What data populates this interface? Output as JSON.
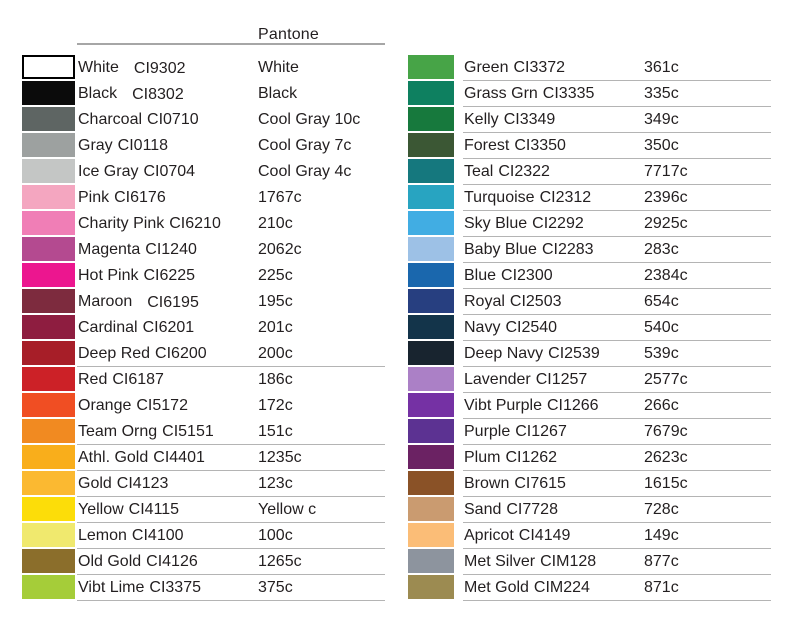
{
  "chart_data": {
    "type": "table",
    "title": "Pantone",
    "left_rows": [
      {
        "name": "White",
        "code": "CI9302",
        "pantone": "White",
        "swatch": "#ffffff",
        "bordered": true,
        "wide_gap": true,
        "underline": false
      },
      {
        "name": "Black",
        "code": "CI8302",
        "pantone": "Black",
        "swatch": "#0b0b0b",
        "bordered": false,
        "wide_gap": true,
        "underline": false
      },
      {
        "name": "Charcoal",
        "code": "CI0710",
        "pantone": "Cool Gray 10c",
        "swatch": "#5e6563",
        "bordered": false,
        "wide_gap": false,
        "underline": false
      },
      {
        "name": "Gray",
        "code": "CI0118",
        "pantone": "Cool Gray 7c",
        "swatch": "#9da1a0",
        "bordered": false,
        "wide_gap": false,
        "underline": false
      },
      {
        "name": "Ice Gray",
        "code": "CI0704",
        "pantone": "Cool Gray 4c",
        "swatch": "#c4c6c5",
        "bordered": false,
        "wide_gap": false,
        "underline": false
      },
      {
        "name": "Pink",
        "code": "CI6176",
        "pantone": "1767c",
        "swatch": "#f4a6c0",
        "bordered": false,
        "wide_gap": false,
        "underline": false
      },
      {
        "name": "Charity Pink",
        "code": "CI6210",
        "pantone": "210c",
        "swatch": "#f07eb6",
        "bordered": false,
        "wide_gap": false,
        "underline": false
      },
      {
        "name": "Magenta",
        "code": "CI1240",
        "pantone": "2062c",
        "swatch": "#b44a90",
        "bordered": false,
        "wide_gap": false,
        "underline": false
      },
      {
        "name": "Hot Pink",
        "code": "CI6225",
        "pantone": "225c",
        "swatch": "#ec168f",
        "bordered": false,
        "wide_gap": false,
        "underline": false
      },
      {
        "name": "Maroon",
        "code": "CI6195",
        "pantone": "195c",
        "swatch": "#7d2b3e",
        "bordered": false,
        "wide_gap": true,
        "underline": false
      },
      {
        "name": "Cardinal",
        "code": "CI6201",
        "pantone": "201c",
        "swatch": "#8e1d40",
        "bordered": false,
        "wide_gap": false,
        "underline": false
      },
      {
        "name": "Deep Red",
        "code": "CI6200",
        "pantone": "200c",
        "swatch": "#a71e28",
        "bordered": false,
        "wide_gap": false,
        "underline": true
      },
      {
        "name": "Red",
        "code": "CI6187",
        "pantone": "186c",
        "swatch": "#cc2127",
        "bordered": false,
        "wide_gap": false,
        "underline": false
      },
      {
        "name": "Orange",
        "code": "CI5172",
        "pantone": "172c",
        "swatch": "#f04e23",
        "bordered": false,
        "wide_gap": false,
        "underline": false
      },
      {
        "name": "Team Orng",
        "code": "CI5151",
        "pantone": "151c",
        "swatch": "#f18a21",
        "bordered": false,
        "wide_gap": false,
        "underline": true
      },
      {
        "name": "Athl. Gold",
        "code": "CI4401",
        "pantone": "1235c",
        "swatch": "#f9ae1b",
        "bordered": false,
        "wide_gap": false,
        "underline": true
      },
      {
        "name": "Gold",
        "code": "CI4123",
        "pantone": "123c",
        "swatch": "#fbb931",
        "bordered": false,
        "wide_gap": false,
        "underline": true
      },
      {
        "name": "Yellow",
        "code": "CI4115",
        "pantone": "Yellow c",
        "swatch": "#fcdd09",
        "bordered": false,
        "wide_gap": false,
        "underline": true
      },
      {
        "name": "Lemon",
        "code": "CI4100",
        "pantone": "100c",
        "swatch": "#f0e96e",
        "bordered": false,
        "wide_gap": false,
        "underline": true
      },
      {
        "name": "Old Gold",
        "code": "CI4126",
        "pantone": "1265c",
        "swatch": "#8b6e2b",
        "bordered": false,
        "wide_gap": false,
        "underline": true
      },
      {
        "name": "Vibt Lime",
        "code": "CI3375",
        "pantone": "375c",
        "swatch": "#a5cd39",
        "bordered": false,
        "wide_gap": false,
        "underline": true
      }
    ],
    "right_rows": [
      {
        "name": "Green",
        "code": "CI3372",
        "pantone": "361c",
        "swatch": "#47a447",
        "bordered": false,
        "wide_gap": false,
        "underline": true
      },
      {
        "name": "Grass Grn",
        "code": "CI3335",
        "pantone": "335c",
        "swatch": "#0e8060",
        "bordered": false,
        "wide_gap": false,
        "underline": true
      },
      {
        "name": "Kelly",
        "code": "CI3349",
        "pantone": "349c",
        "swatch": "#17793d",
        "bordered": false,
        "wide_gap": false,
        "underline": true
      },
      {
        "name": "Forest",
        "code": "CI3350",
        "pantone": "350c",
        "swatch": "#3b5734",
        "bordered": false,
        "wide_gap": false,
        "underline": true
      },
      {
        "name": "Teal",
        "code": "CI2322",
        "pantone": "7717c",
        "swatch": "#15787e",
        "bordered": false,
        "wide_gap": false,
        "underline": true
      },
      {
        "name": "Turquoise",
        "code": "CI2312",
        "pantone": "2396c",
        "swatch": "#28a4c1",
        "bordered": false,
        "wide_gap": false,
        "underline": true
      },
      {
        "name": "Sky Blue",
        "code": "CI2292",
        "pantone": "2925c",
        "swatch": "#41ade3",
        "bordered": false,
        "wide_gap": false,
        "underline": true
      },
      {
        "name": "Baby Blue",
        "code": "CI2283",
        "pantone": "283c",
        "swatch": "#9dc1e6",
        "bordered": false,
        "wide_gap": false,
        "underline": true
      },
      {
        "name": "Blue",
        "code": "CI2300",
        "pantone": "2384c",
        "swatch": "#1a67ad",
        "bordered": false,
        "wide_gap": false,
        "underline": true
      },
      {
        "name": "Royal",
        "code": "CI2503",
        "pantone": "654c",
        "swatch": "#273f80",
        "bordered": false,
        "wide_gap": false,
        "underline": true
      },
      {
        "name": "Navy",
        "code": "CI2540",
        "pantone": "540c",
        "swatch": "#13344a",
        "bordered": false,
        "wide_gap": false,
        "underline": true
      },
      {
        "name": "Deep Navy",
        "code": "CI2539",
        "pantone": "539c",
        "swatch": "#18242f",
        "bordered": false,
        "wide_gap": false,
        "underline": true
      },
      {
        "name": "Lavender",
        "code": "CI1257",
        "pantone": "2577c",
        "swatch": "#ab80c6",
        "bordered": false,
        "wide_gap": false,
        "underline": true
      },
      {
        "name": "Vibt Purple",
        "code": "CI1266",
        "pantone": "266c",
        "swatch": "#7531a4",
        "bordered": false,
        "wide_gap": false,
        "underline": true
      },
      {
        "name": "Purple",
        "code": "CI1267",
        "pantone": "7679c",
        "swatch": "#5c3292",
        "bordered": false,
        "wide_gap": false,
        "underline": true
      },
      {
        "name": "Plum",
        "code": "CI1262",
        "pantone": "2623c",
        "swatch": "#6b2263",
        "bordered": false,
        "wide_gap": false,
        "underline": true
      },
      {
        "name": "Brown",
        "code": "CI7615",
        "pantone": "1615c",
        "swatch": "#8a5227",
        "bordered": false,
        "wide_gap": false,
        "underline": true
      },
      {
        "name": "Sand",
        "code": "CI7728",
        "pantone": "728c",
        "swatch": "#ca9b70",
        "bordered": false,
        "wide_gap": false,
        "underline": true
      },
      {
        "name": "Apricot",
        "code": "CI4149",
        "pantone": "149c",
        "swatch": "#fbbd77",
        "bordered": false,
        "wide_gap": false,
        "underline": true
      },
      {
        "name": "Met Silver",
        "code": "CIM128",
        "pantone": "877c",
        "swatch": "#8d949e",
        "bordered": false,
        "wide_gap": false,
        "underline": true
      },
      {
        "name": "Met Gold",
        "code": "CIM224",
        "pantone": "871c",
        "swatch": "#9c8b51",
        "bordered": false,
        "wide_gap": false,
        "underline": true
      }
    ]
  },
  "colors": {
    "text": "#231f20",
    "header_rule": "#a6a6a6",
    "row_rule": "#b4b4b4",
    "background": "#ffffff"
  }
}
